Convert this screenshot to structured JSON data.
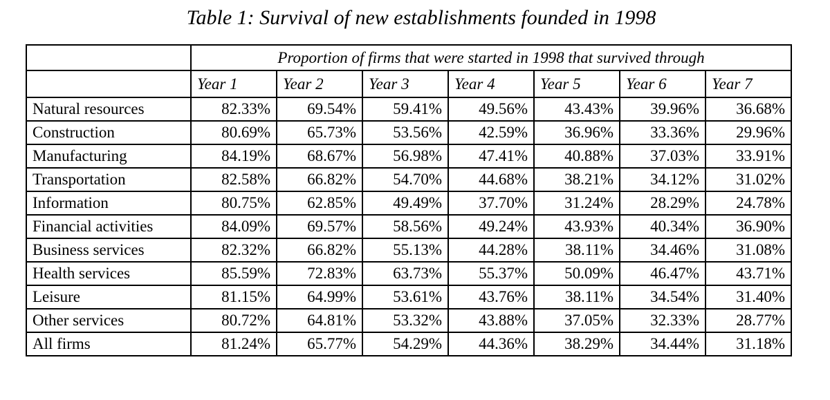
{
  "caption": "Table 1: Survival of new establishments founded in 1998",
  "table": {
    "super_header": "Proportion of firms that were started in 1998 that survived through",
    "years": [
      "Year 1",
      "Year 2",
      "Year 3",
      "Year 4",
      "Year 5",
      "Year 6",
      "Year 7"
    ],
    "rows": [
      {
        "industry": "Natural resources",
        "values": [
          "82.33%",
          "69.54%",
          "59.41%",
          "49.56%",
          "43.43%",
          "39.96%",
          "36.68%"
        ]
      },
      {
        "industry": "Construction",
        "values": [
          "80.69%",
          "65.73%",
          "53.56%",
          "42.59%",
          "36.96%",
          "33.36%",
          "29.96%"
        ]
      },
      {
        "industry": "Manufacturing",
        "values": [
          "84.19%",
          "68.67%",
          "56.98%",
          "47.41%",
          "40.88%",
          "37.03%",
          "33.91%"
        ]
      },
      {
        "industry": "Transportation",
        "values": [
          "82.58%",
          "66.82%",
          "54.70%",
          "44.68%",
          "38.21%",
          "34.12%",
          "31.02%"
        ]
      },
      {
        "industry": "Information",
        "values": [
          "80.75%",
          "62.85%",
          "49.49%",
          "37.70%",
          "31.24%",
          "28.29%",
          "24.78%"
        ]
      },
      {
        "industry": "Financial activities",
        "values": [
          "84.09%",
          "69.57%",
          "58.56%",
          "49.24%",
          "43.93%",
          "40.34%",
          "36.90%"
        ]
      },
      {
        "industry": "Business services",
        "values": [
          "82.32%",
          "66.82%",
          "55.13%",
          "44.28%",
          "38.11%",
          "34.46%",
          "31.08%"
        ]
      },
      {
        "industry": "Health services",
        "values": [
          "85.59%",
          "72.83%",
          "63.73%",
          "55.37%",
          "50.09%",
          "46.47%",
          "43.71%"
        ]
      },
      {
        "industry": "Leisure",
        "values": [
          "81.15%",
          "64.99%",
          "53.61%",
          "43.76%",
          "38.11%",
          "34.54%",
          "31.40%"
        ]
      },
      {
        "industry": "Other services",
        "values": [
          "80.72%",
          "64.81%",
          "53.32%",
          "43.88%",
          "37.05%",
          "32.33%",
          "28.77%"
        ]
      },
      {
        "industry": "All firms",
        "values": [
          "81.24%",
          "65.77%",
          "54.29%",
          "44.36%",
          "38.29%",
          "34.44%",
          "31.18%"
        ]
      }
    ]
  }
}
